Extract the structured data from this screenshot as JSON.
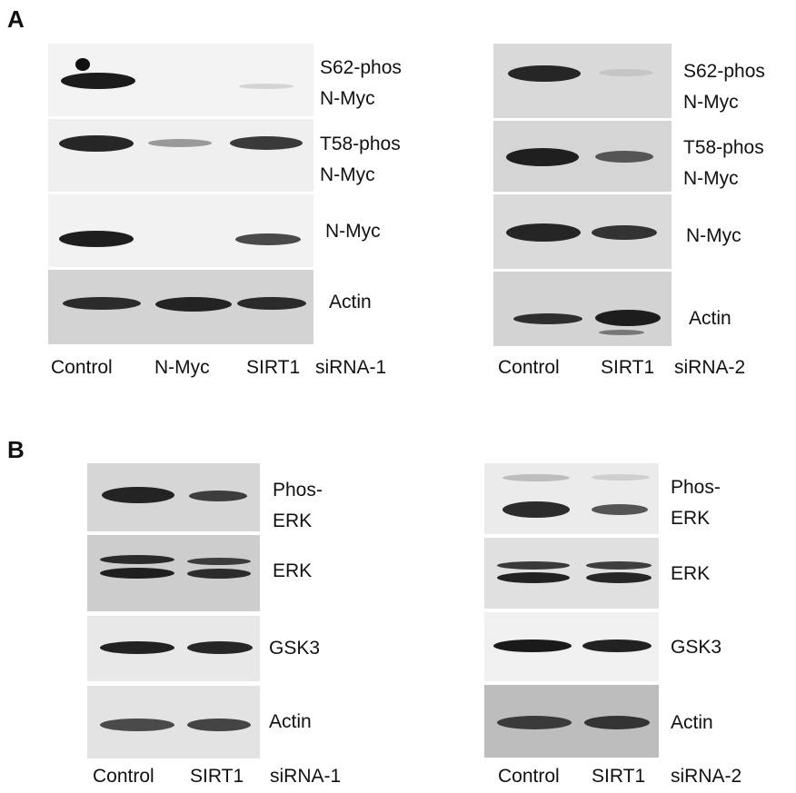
{
  "panel_a": {
    "letter": "A",
    "left": {
      "labels": {
        "s62": [
          "S62-phos",
          "N-Myc"
        ],
        "t58": [
          "T58-phos",
          "N-Myc"
        ],
        "nmyc": "N-Myc",
        "actin": "Actin"
      },
      "lanes": [
        "Control",
        "N-Myc",
        "SIRT1",
        "siRNA-1"
      ]
    },
    "right": {
      "labels": {
        "s62": [
          "S62-phos",
          "N-Myc"
        ],
        "t58": [
          "T58-phos",
          "N-Myc"
        ],
        "nmyc": "N-Myc",
        "actin": "Actin"
      },
      "lanes": [
        "Control",
        "SIRT1",
        "siRNA-2"
      ]
    }
  },
  "panel_b": {
    "letter": "B",
    "left": {
      "labels": {
        "phos": [
          "Phos-",
          "ERK"
        ],
        "erk": "ERK",
        "gsk3": "GSK3",
        "actin": "Actin"
      },
      "lanes": [
        "Control",
        "SIRT1",
        "siRNA-1"
      ]
    },
    "right": {
      "labels": {
        "phos": [
          "Phos-",
          "ERK"
        ],
        "erk": "ERK",
        "gsk3": "GSK3",
        "actin": "Actin"
      },
      "lanes": [
        "Control",
        "SIRT1",
        "siRNA-2"
      ]
    }
  }
}
